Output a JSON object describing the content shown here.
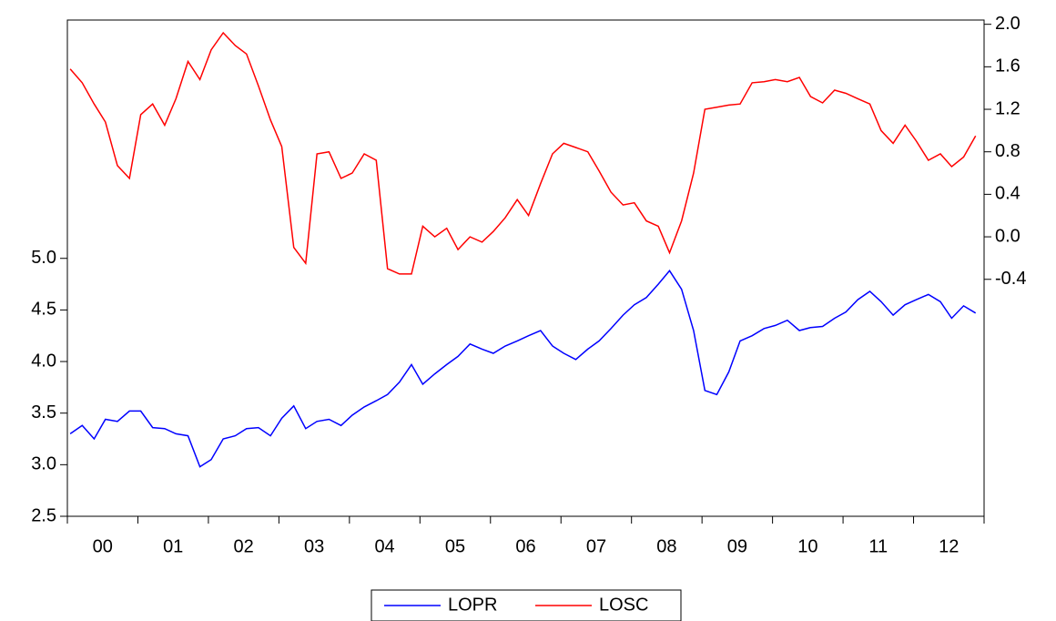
{
  "chart_data": {
    "type": "line",
    "x": [
      2000.04,
      2000.21,
      2000.38,
      2000.54,
      2000.71,
      2000.88,
      2001.04,
      2001.21,
      2001.38,
      2001.54,
      2001.71,
      2001.88,
      2002.04,
      2002.21,
      2002.38,
      2002.54,
      2002.71,
      2002.88,
      2003.04,
      2003.21,
      2003.38,
      2003.54,
      2003.71,
      2003.88,
      2004.04,
      2004.21,
      2004.38,
      2004.54,
      2004.71,
      2004.88,
      2005.04,
      2005.21,
      2005.38,
      2005.54,
      2005.71,
      2005.88,
      2006.04,
      2006.21,
      2006.38,
      2006.54,
      2006.71,
      2006.88,
      2007.04,
      2007.21,
      2007.38,
      2007.54,
      2007.71,
      2007.88,
      2008.04,
      2008.21,
      2008.38,
      2008.54,
      2008.71,
      2008.88,
      2009.04,
      2009.21,
      2009.38,
      2009.54,
      2009.71,
      2009.88,
      2010.04,
      2010.21,
      2010.38,
      2010.54,
      2010.71,
      2010.88,
      2011.04,
      2011.21,
      2011.38,
      2011.54,
      2011.71,
      2011.88,
      2012.04,
      2012.21,
      2012.38,
      2012.54,
      2012.71,
      2012.88
    ],
    "series": [
      {
        "name": "LOPR",
        "color": "#0000ff",
        "values": [
          3.3,
          3.38,
          3.25,
          3.44,
          3.42,
          3.52,
          3.52,
          3.36,
          3.35,
          3.3,
          3.28,
          2.98,
          3.05,
          3.25,
          3.28,
          3.35,
          3.36,
          3.28,
          3.45,
          3.57,
          3.35,
          3.42,
          3.44,
          3.38,
          3.48,
          3.56,
          3.62,
          3.68,
          3.8,
          3.97,
          3.78,
          3.88,
          3.97,
          4.05,
          4.17,
          4.12,
          4.08,
          4.15,
          4.2,
          4.25,
          4.3,
          4.15,
          4.08,
          4.02,
          4.12,
          4.2,
          4.32,
          4.45,
          4.55,
          4.62,
          4.75,
          4.88,
          4.7,
          4.3,
          3.72,
          3.68,
          3.9,
          4.2,
          4.25,
          4.32,
          4.35,
          4.4,
          4.3,
          4.33,
          4.34,
          4.42,
          4.48,
          4.6,
          4.68,
          4.58,
          4.45,
          4.55,
          4.6,
          4.65,
          4.58,
          4.42,
          4.54,
          4.47
        ]
      },
      {
        "name": "LOSC",
        "color": "#ff0000",
        "axis": "y2",
        "values": [
          1.58,
          1.45,
          1.25,
          1.08,
          0.67,
          0.55,
          1.15,
          1.25,
          1.05,
          1.3,
          1.65,
          1.48,
          1.76,
          1.92,
          1.8,
          1.72,
          1.42,
          1.1,
          0.85,
          -0.1,
          -0.25,
          0.78,
          0.8,
          0.55,
          0.6,
          0.78,
          0.72,
          -0.3,
          -0.35,
          -0.35,
          0.1,
          0.0,
          0.08,
          -0.12,
          0.0,
          -0.05,
          0.05,
          0.18,
          0.35,
          0.2,
          0.5,
          0.78,
          0.88,
          0.84,
          0.8,
          0.62,
          0.42,
          0.3,
          0.32,
          0.15,
          0.1,
          -0.15,
          0.15,
          0.6,
          1.2,
          1.22,
          1.24,
          1.25,
          1.45,
          1.46,
          1.48,
          1.46,
          1.5,
          1.32,
          1.26,
          1.38,
          1.35,
          1.3,
          1.25,
          1.0,
          0.88,
          1.05,
          0.9,
          0.72,
          0.78,
          0.66,
          0.75,
          0.95
        ]
      }
    ],
    "xlim": [
      2000,
      2013
    ],
    "xticks": [
      {
        "value": 2000.5,
        "label": "00"
      },
      {
        "value": 2001.5,
        "label": "01"
      },
      {
        "value": 2002.5,
        "label": "02"
      },
      {
        "value": 2003.5,
        "label": "03"
      },
      {
        "value": 2004.5,
        "label": "04"
      },
      {
        "value": 2005.5,
        "label": "05"
      },
      {
        "value": 2006.5,
        "label": "06"
      },
      {
        "value": 2007.5,
        "label": "07"
      },
      {
        "value": 2008.5,
        "label": "08"
      },
      {
        "value": 2009.5,
        "label": "09"
      },
      {
        "value": 2010.5,
        "label": "10"
      },
      {
        "value": 2011.5,
        "label": "11"
      },
      {
        "value": 2012.5,
        "label": "12"
      }
    ],
    "ylim": [
      2.5,
      7.31
    ],
    "yticks": [
      2.5,
      {
        "value": 3,
        "label": "3.0"
      },
      3.5,
      {
        "value": 4,
        "label": "4.0"
      },
      4.5,
      {
        "value": 5,
        "label": "5.0"
      }
    ],
    "y2lim": [
      -2.63,
      2.04
    ],
    "y2ticks": [
      -0.4,
      {
        "value": 0,
        "label": "0.0"
      },
      0.4,
      0.8,
      1.2,
      1.6,
      {
        "value": 2,
        "label": "2.0"
      }
    ],
    "legend": "bottom"
  }
}
